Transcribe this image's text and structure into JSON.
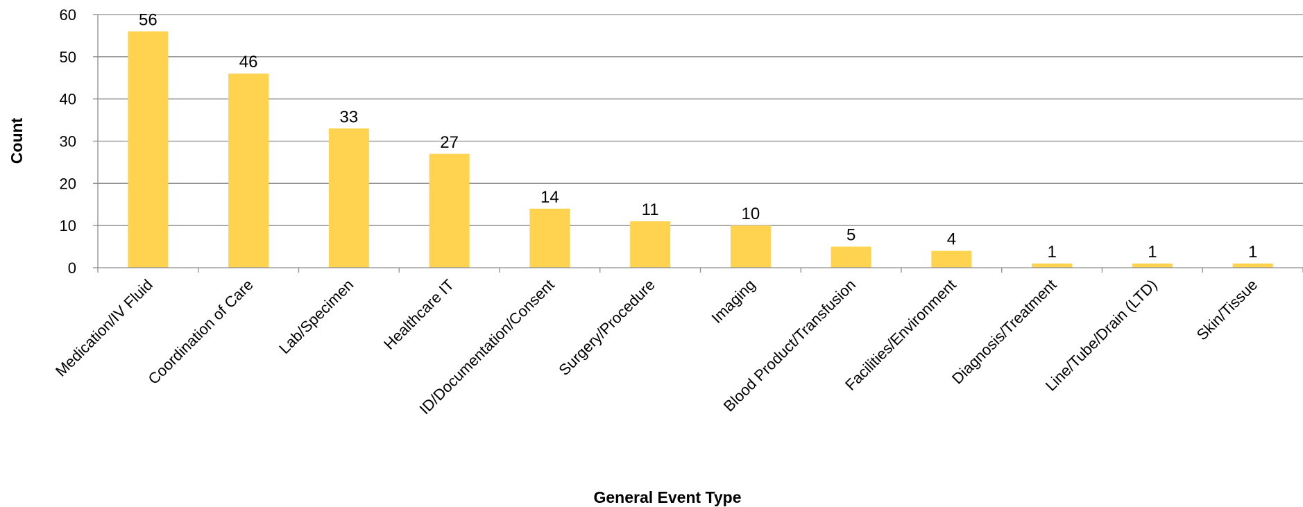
{
  "chart_data": {
    "type": "bar",
    "title": "",
    "xlabel": "General Event Type",
    "ylabel": "Count",
    "ylim": [
      0,
      60
    ],
    "yticks": [
      0,
      10,
      20,
      30,
      40,
      50,
      60
    ],
    "grid": true,
    "legend": "none",
    "bar_color": "#FFD24F",
    "categories": [
      "Medication/IV Fluid",
      "Coordination of Care",
      "Lab/Specimen",
      "Healthcare IT",
      "ID/Documentation/Consent",
      "Surgery/Procedure",
      "Imaging",
      "Blood Product/Transfusion",
      "Facilities/Environment",
      "Diagnosis/Treatment",
      "Line/Tube/Drain (LTD)",
      "Skin/Tissue"
    ],
    "values": [
      56,
      46,
      33,
      27,
      14,
      11,
      10,
      5,
      4,
      1,
      1,
      1
    ]
  }
}
